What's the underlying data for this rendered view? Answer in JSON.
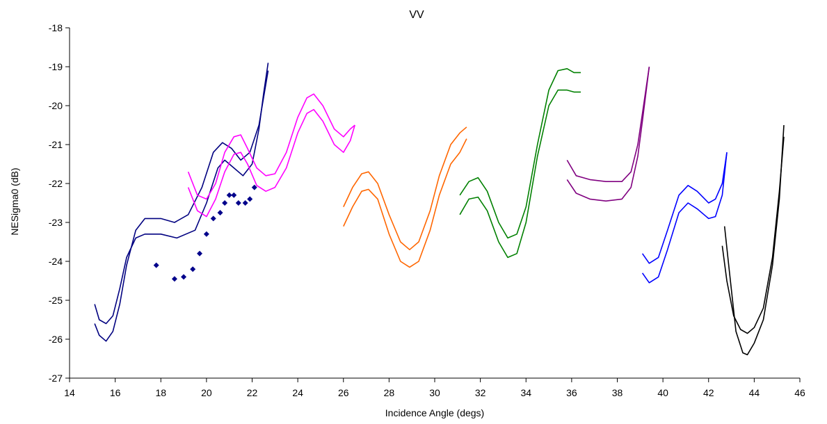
{
  "chart_data": {
    "type": "line",
    "title": "VV",
    "xlabel": "Incidence Angle (degs)",
    "ylabel": "NESigma0 (dB)",
    "xlim": [
      14,
      46
    ],
    "ylim": [
      -27,
      -18
    ],
    "xticks": [
      14,
      16,
      18,
      20,
      22,
      24,
      26,
      28,
      30,
      32,
      34,
      36,
      38,
      40,
      42,
      44,
      46
    ],
    "yticks": [
      -27,
      -26,
      -25,
      -24,
      -23,
      -22,
      -21,
      -20,
      -19,
      -18
    ],
    "grid": false,
    "series": [
      {
        "color": "#000080",
        "style": "line",
        "points": [
          [
            15.1,
            -25.1
          ],
          [
            15.3,
            -25.5
          ],
          [
            15.6,
            -25.6
          ],
          [
            15.9,
            -25.4
          ],
          [
            16.2,
            -24.7
          ],
          [
            16.5,
            -23.9
          ],
          [
            16.9,
            -23.4
          ],
          [
            17.3,
            -23.3
          ],
          [
            18,
            -23.3
          ],
          [
            18.7,
            -23.4
          ],
          [
            19.5,
            -23.2
          ],
          [
            20,
            -22.5
          ],
          [
            20.5,
            -21.6
          ],
          [
            20.8,
            -21.4
          ],
          [
            21.2,
            -21.6
          ],
          [
            21.6,
            -21.8
          ],
          [
            22,
            -21.5
          ],
          [
            22.3,
            -20.6
          ],
          [
            22.5,
            -19.7
          ],
          [
            22.7,
            -18.9
          ]
        ]
      },
      {
        "color": "#000080",
        "style": "line",
        "points": [
          [
            15.1,
            -25.6
          ],
          [
            15.3,
            -25.9
          ],
          [
            15.6,
            -26.05
          ],
          [
            15.9,
            -25.8
          ],
          [
            16.2,
            -25.1
          ],
          [
            16.5,
            -24.1
          ],
          [
            16.9,
            -23.2
          ],
          [
            17.3,
            -22.9
          ],
          [
            18,
            -22.9
          ],
          [
            18.6,
            -23
          ],
          [
            19.2,
            -22.8
          ],
          [
            19.8,
            -22.1
          ],
          [
            20.3,
            -21.2
          ],
          [
            20.7,
            -20.95
          ],
          [
            21.1,
            -21.1
          ],
          [
            21.5,
            -21.4
          ],
          [
            21.9,
            -21.2
          ],
          [
            22.3,
            -20.5
          ],
          [
            22.5,
            -19.8
          ],
          [
            22.7,
            -19.1
          ]
        ]
      },
      {
        "color": "#00008B",
        "style": "marker",
        "points": [
          [
            17.8,
            -24.1
          ],
          [
            18.6,
            -24.45
          ],
          [
            19,
            -24.4
          ],
          [
            19.4,
            -24.2
          ],
          [
            19.7,
            -23.8
          ],
          [
            20,
            -23.3
          ],
          [
            20.3,
            -22.9
          ],
          [
            20.6,
            -22.75
          ],
          [
            20.8,
            -22.5
          ],
          [
            21,
            -22.3
          ],
          [
            21.2,
            -22.3
          ],
          [
            21.4,
            -22.5
          ],
          [
            21.7,
            -22.5
          ],
          [
            21.9,
            -22.4
          ],
          [
            22.1,
            -22.1
          ]
        ]
      },
      {
        "color": "#FF00FF",
        "style": "line",
        "points": [
          [
            19.2,
            -21.7
          ],
          [
            19.6,
            -22.3
          ],
          [
            20,
            -22.4
          ],
          [
            20.4,
            -22
          ],
          [
            20.8,
            -21.2
          ],
          [
            21.2,
            -20.8
          ],
          [
            21.5,
            -20.75
          ],
          [
            21.8,
            -21.1
          ],
          [
            22.2,
            -21.6
          ],
          [
            22.6,
            -21.8
          ],
          [
            23,
            -21.75
          ],
          [
            23.5,
            -21.2
          ],
          [
            24,
            -20.3
          ],
          [
            24.4,
            -19.8
          ],
          [
            24.7,
            -19.7
          ],
          [
            25.1,
            -20
          ],
          [
            25.6,
            -20.6
          ],
          [
            26,
            -20.8
          ],
          [
            26.3,
            -20.6
          ],
          [
            26.5,
            -20.5
          ]
        ]
      },
      {
        "color": "#FF00FF",
        "style": "line",
        "points": [
          [
            19.2,
            -22.1
          ],
          [
            19.6,
            -22.7
          ],
          [
            20,
            -22.85
          ],
          [
            20.4,
            -22.4
          ],
          [
            20.8,
            -21.7
          ],
          [
            21.2,
            -21.25
          ],
          [
            21.5,
            -21.2
          ],
          [
            21.8,
            -21.5
          ],
          [
            22.2,
            -22.05
          ],
          [
            22.6,
            -22.2
          ],
          [
            23,
            -22.1
          ],
          [
            23.5,
            -21.6
          ],
          [
            24,
            -20.7
          ],
          [
            24.4,
            -20.2
          ],
          [
            24.7,
            -20.1
          ],
          [
            25.1,
            -20.4
          ],
          [
            25.6,
            -21
          ],
          [
            26,
            -21.2
          ],
          [
            26.3,
            -20.9
          ],
          [
            26.5,
            -20.5
          ]
        ]
      },
      {
        "color": "#FF6600",
        "style": "line",
        "points": [
          [
            26,
            -22.6
          ],
          [
            26.4,
            -22.1
          ],
          [
            26.8,
            -21.75
          ],
          [
            27.1,
            -21.7
          ],
          [
            27.5,
            -22
          ],
          [
            28,
            -22.8
          ],
          [
            28.5,
            -23.5
          ],
          [
            28.9,
            -23.7
          ],
          [
            29.3,
            -23.5
          ],
          [
            29.8,
            -22.7
          ],
          [
            30.2,
            -21.8
          ],
          [
            30.7,
            -21
          ],
          [
            31.1,
            -20.7
          ],
          [
            31.4,
            -20.55
          ]
        ]
      },
      {
        "color": "#FF6600",
        "style": "line",
        "points": [
          [
            26,
            -23.1
          ],
          [
            26.4,
            -22.6
          ],
          [
            26.8,
            -22.2
          ],
          [
            27.1,
            -22.15
          ],
          [
            27.5,
            -22.4
          ],
          [
            28,
            -23.3
          ],
          [
            28.5,
            -24
          ],
          [
            28.9,
            -24.15
          ],
          [
            29.3,
            -24
          ],
          [
            29.8,
            -23.2
          ],
          [
            30.2,
            -22.3
          ],
          [
            30.7,
            -21.5
          ],
          [
            31.1,
            -21.2
          ],
          [
            31.4,
            -20.85
          ]
        ]
      },
      {
        "color": "#008000",
        "style": "line",
        "points": [
          [
            31.1,
            -22.3
          ],
          [
            31.5,
            -21.95
          ],
          [
            31.9,
            -21.85
          ],
          [
            32.3,
            -22.2
          ],
          [
            32.8,
            -23
          ],
          [
            33.2,
            -23.4
          ],
          [
            33.6,
            -23.3
          ],
          [
            34,
            -22.6
          ],
          [
            34.5,
            -21
          ],
          [
            35,
            -19.6
          ],
          [
            35.4,
            -19.1
          ],
          [
            35.8,
            -19.05
          ],
          [
            36.1,
            -19.15
          ],
          [
            36.4,
            -19.15
          ]
        ]
      },
      {
        "color": "#008000",
        "style": "line",
        "points": [
          [
            31.1,
            -22.8
          ],
          [
            31.5,
            -22.4
          ],
          [
            31.9,
            -22.35
          ],
          [
            32.3,
            -22.7
          ],
          [
            32.8,
            -23.5
          ],
          [
            33.2,
            -23.9
          ],
          [
            33.6,
            -23.8
          ],
          [
            34,
            -23
          ],
          [
            34.5,
            -21.3
          ],
          [
            35,
            -20
          ],
          [
            35.4,
            -19.6
          ],
          [
            35.8,
            -19.6
          ],
          [
            36.1,
            -19.65
          ],
          [
            36.4,
            -19.65
          ]
        ]
      },
      {
        "color": "#800080",
        "style": "line",
        "points": [
          [
            35.8,
            -21.4
          ],
          [
            36.2,
            -21.8
          ],
          [
            36.8,
            -21.9
          ],
          [
            37.5,
            -21.95
          ],
          [
            38.2,
            -21.95
          ],
          [
            38.6,
            -21.7
          ],
          [
            38.9,
            -21
          ],
          [
            39.1,
            -20.2
          ],
          [
            39.4,
            -19
          ]
        ]
      },
      {
        "color": "#800080",
        "style": "line",
        "points": [
          [
            35.8,
            -21.9
          ],
          [
            36.2,
            -22.25
          ],
          [
            36.8,
            -22.4
          ],
          [
            37.5,
            -22.45
          ],
          [
            38.2,
            -22.4
          ],
          [
            38.6,
            -22.1
          ],
          [
            38.9,
            -21.3
          ],
          [
            39.1,
            -20.4
          ],
          [
            39.4,
            -19
          ]
        ]
      },
      {
        "color": "#0000FF",
        "style": "line",
        "points": [
          [
            39.1,
            -23.8
          ],
          [
            39.4,
            -24.05
          ],
          [
            39.8,
            -23.9
          ],
          [
            40.2,
            -23.2
          ],
          [
            40.7,
            -22.3
          ],
          [
            41.1,
            -22.05
          ],
          [
            41.5,
            -22.2
          ],
          [
            42,
            -22.5
          ],
          [
            42.3,
            -22.4
          ],
          [
            42.6,
            -22
          ],
          [
            42.8,
            -21.2
          ]
        ]
      },
      {
        "color": "#0000FF",
        "style": "line",
        "points": [
          [
            39.1,
            -24.3
          ],
          [
            39.4,
            -24.55
          ],
          [
            39.8,
            -24.4
          ],
          [
            40.2,
            -23.7
          ],
          [
            40.7,
            -22.75
          ],
          [
            41.1,
            -22.5
          ],
          [
            41.5,
            -22.65
          ],
          [
            42,
            -22.9
          ],
          [
            42.3,
            -22.85
          ],
          [
            42.6,
            -22.3
          ],
          [
            42.8,
            -21.2
          ]
        ]
      },
      {
        "color": "#000000",
        "style": "line",
        "points": [
          [
            42.6,
            -23.6
          ],
          [
            42.8,
            -24.5
          ],
          [
            43.1,
            -25.4
          ],
          [
            43.4,
            -25.75
          ],
          [
            43.7,
            -25.85
          ],
          [
            44,
            -25.7
          ],
          [
            44.4,
            -25.2
          ],
          [
            44.8,
            -23.9
          ],
          [
            45.1,
            -22.2
          ],
          [
            45.3,
            -20.8
          ]
        ]
      },
      {
        "color": "#000000",
        "style": "line",
        "points": [
          [
            42.7,
            -23.1
          ],
          [
            42.9,
            -24.2
          ],
          [
            43.2,
            -25.8
          ],
          [
            43.5,
            -26.35
          ],
          [
            43.7,
            -26.4
          ],
          [
            44,
            -26.1
          ],
          [
            44.4,
            -25.5
          ],
          [
            44.8,
            -24.1
          ],
          [
            45.1,
            -22.4
          ],
          [
            45.3,
            -20.5
          ]
        ]
      }
    ]
  }
}
